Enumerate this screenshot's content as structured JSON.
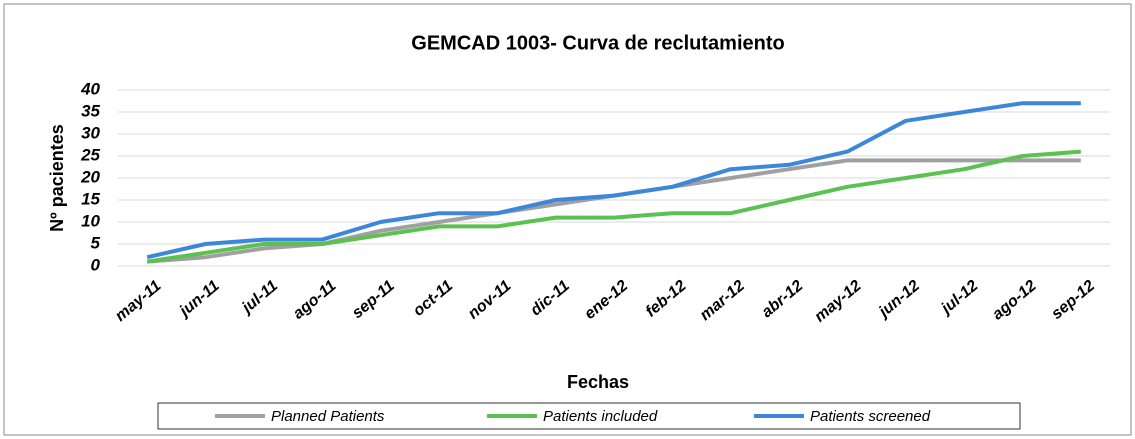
{
  "chart_data": {
    "type": "line",
    "title": "GEMCAD 1003- Curva de reclutamiento",
    "x_label": "Fechas",
    "y_label": "Nº pacientes",
    "categories": [
      "may-11",
      "jun-11",
      "jul-11",
      "ago-11",
      "sep-11",
      "oct-11",
      "nov-11",
      "dic-11",
      "ene-12",
      "feb-12",
      "mar-12",
      "abr-12",
      "may-12",
      "jun-12",
      "jul-12",
      "ago-12",
      "sep-12"
    ],
    "series": [
      {
        "name": "Planned Patients",
        "color": "#a0a0a0",
        "values": [
          1,
          2,
          4,
          5,
          8,
          10,
          12,
          14,
          16,
          18,
          20,
          22,
          24,
          24,
          24,
          24,
          24
        ]
      },
      {
        "name": "Patients  included",
        "color": "#5cc151",
        "values": [
          1,
          3,
          5,
          5,
          7,
          9,
          9,
          11,
          11,
          12,
          12,
          15,
          18,
          20,
          22,
          25,
          26
        ]
      },
      {
        "name": "Patients screened",
        "color": "#3d87d8",
        "values": [
          2,
          5,
          6,
          6,
          10,
          12,
          12,
          15,
          16,
          18,
          22,
          23,
          26,
          33,
          35,
          37,
          37
        ]
      }
    ],
    "ylim": [
      0,
      40
    ],
    "yticks": [
      0,
      5,
      10,
      15,
      20,
      25,
      30,
      35,
      40
    ],
    "grid": true,
    "legend": "bottom"
  }
}
